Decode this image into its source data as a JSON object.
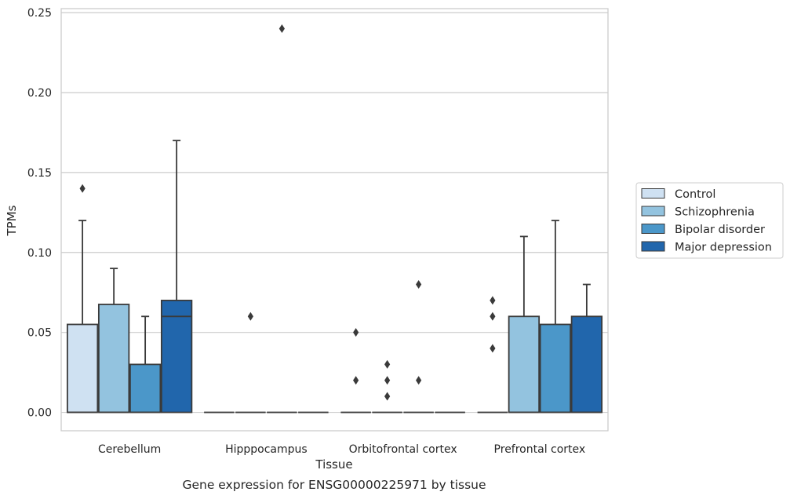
{
  "chart_data": {
    "type": "box",
    "title": "",
    "caption": "Gene expression for ENSG00000225971 by tissue",
    "xlabel": "Tissue",
    "ylabel": "TPMs",
    "ylim": [
      -0.0115,
      0.2525
    ],
    "yticks": [
      0.0,
      0.05,
      0.1,
      0.15,
      0.2,
      0.25
    ],
    "ytick_labels": [
      "0.00",
      "0.05",
      "0.10",
      "0.15",
      "0.20",
      "0.25"
    ],
    "grid": "horizontal",
    "legend_position": "right",
    "categories": [
      "Cerebellum",
      "Hipppocampus",
      "Orbitofrontal cortex",
      "Prefrontal cortex"
    ],
    "series": [
      {
        "name": "Control",
        "color": "#cfe1f2",
        "boxes": [
          {
            "q1": 0.0,
            "median": 0.0,
            "q3": 0.055,
            "whisker_low": 0.0,
            "whisker_high": 0.12,
            "outliers": [
              0.14
            ]
          },
          {
            "q1": 0.0,
            "median": 0.0,
            "q3": 0.0,
            "whisker_low": 0.0,
            "whisker_high": 0.0,
            "outliers": []
          },
          {
            "q1": 0.0,
            "median": 0.0,
            "q3": 0.0,
            "whisker_low": 0.0,
            "whisker_high": 0.0,
            "outliers": [
              0.05,
              0.02
            ]
          },
          {
            "q1": 0.0,
            "median": 0.0,
            "q3": 0.0,
            "whisker_low": 0.0,
            "whisker_high": 0.0,
            "outliers": [
              0.07,
              0.06,
              0.04
            ]
          }
        ]
      },
      {
        "name": "Schizophrenia",
        "color": "#93c3df",
        "boxes": [
          {
            "q1": 0.0,
            "median": 0.0,
            "q3": 0.0675,
            "whisker_low": 0.0,
            "whisker_high": 0.09,
            "outliers": []
          },
          {
            "q1": 0.0,
            "median": 0.0,
            "q3": 0.0,
            "whisker_low": 0.0,
            "whisker_high": 0.0,
            "outliers": [
              0.06
            ]
          },
          {
            "q1": 0.0,
            "median": 0.0,
            "q3": 0.0,
            "whisker_low": 0.0,
            "whisker_high": 0.0,
            "outliers": [
              0.03,
              0.02,
              0.01
            ]
          },
          {
            "q1": 0.0,
            "median": 0.0,
            "q3": 0.06,
            "whisker_low": 0.0,
            "whisker_high": 0.11,
            "outliers": []
          }
        ]
      },
      {
        "name": "Bipolar disorder",
        "color": "#4b97c9",
        "boxes": [
          {
            "q1": 0.0,
            "median": 0.0,
            "q3": 0.03,
            "whisker_low": 0.0,
            "whisker_high": 0.06,
            "outliers": []
          },
          {
            "q1": 0.0,
            "median": 0.0,
            "q3": 0.0,
            "whisker_low": 0.0,
            "whisker_high": 0.0,
            "outliers": [
              0.24
            ]
          },
          {
            "q1": 0.0,
            "median": 0.0,
            "q3": 0.0,
            "whisker_low": 0.0,
            "whisker_high": 0.0,
            "outliers": [
              0.08,
              0.02
            ]
          },
          {
            "q1": 0.0,
            "median": 0.0,
            "q3": 0.055,
            "whisker_low": 0.0,
            "whisker_high": 0.12,
            "outliers": []
          }
        ]
      },
      {
        "name": "Major depression",
        "color": "#2166ac",
        "boxes": [
          {
            "q1": 0.0,
            "median": 0.06,
            "q3": 0.07,
            "whisker_low": 0.0,
            "whisker_high": 0.17,
            "outliers": []
          },
          {
            "q1": 0.0,
            "median": 0.0,
            "q3": 0.0,
            "whisker_low": 0.0,
            "whisker_high": 0.0,
            "outliers": []
          },
          {
            "q1": 0.0,
            "median": 0.0,
            "q3": 0.0,
            "whisker_low": 0.0,
            "whisker_high": 0.0,
            "outliers": []
          },
          {
            "q1": 0.0,
            "median": 0.0,
            "q3": 0.06,
            "whisker_low": 0.0,
            "whisker_high": 0.08,
            "outliers": []
          }
        ]
      }
    ],
    "colors": {
      "grid": "#cccccc",
      "frame": "#cccccc",
      "edge": "#3a3a3a"
    }
  }
}
